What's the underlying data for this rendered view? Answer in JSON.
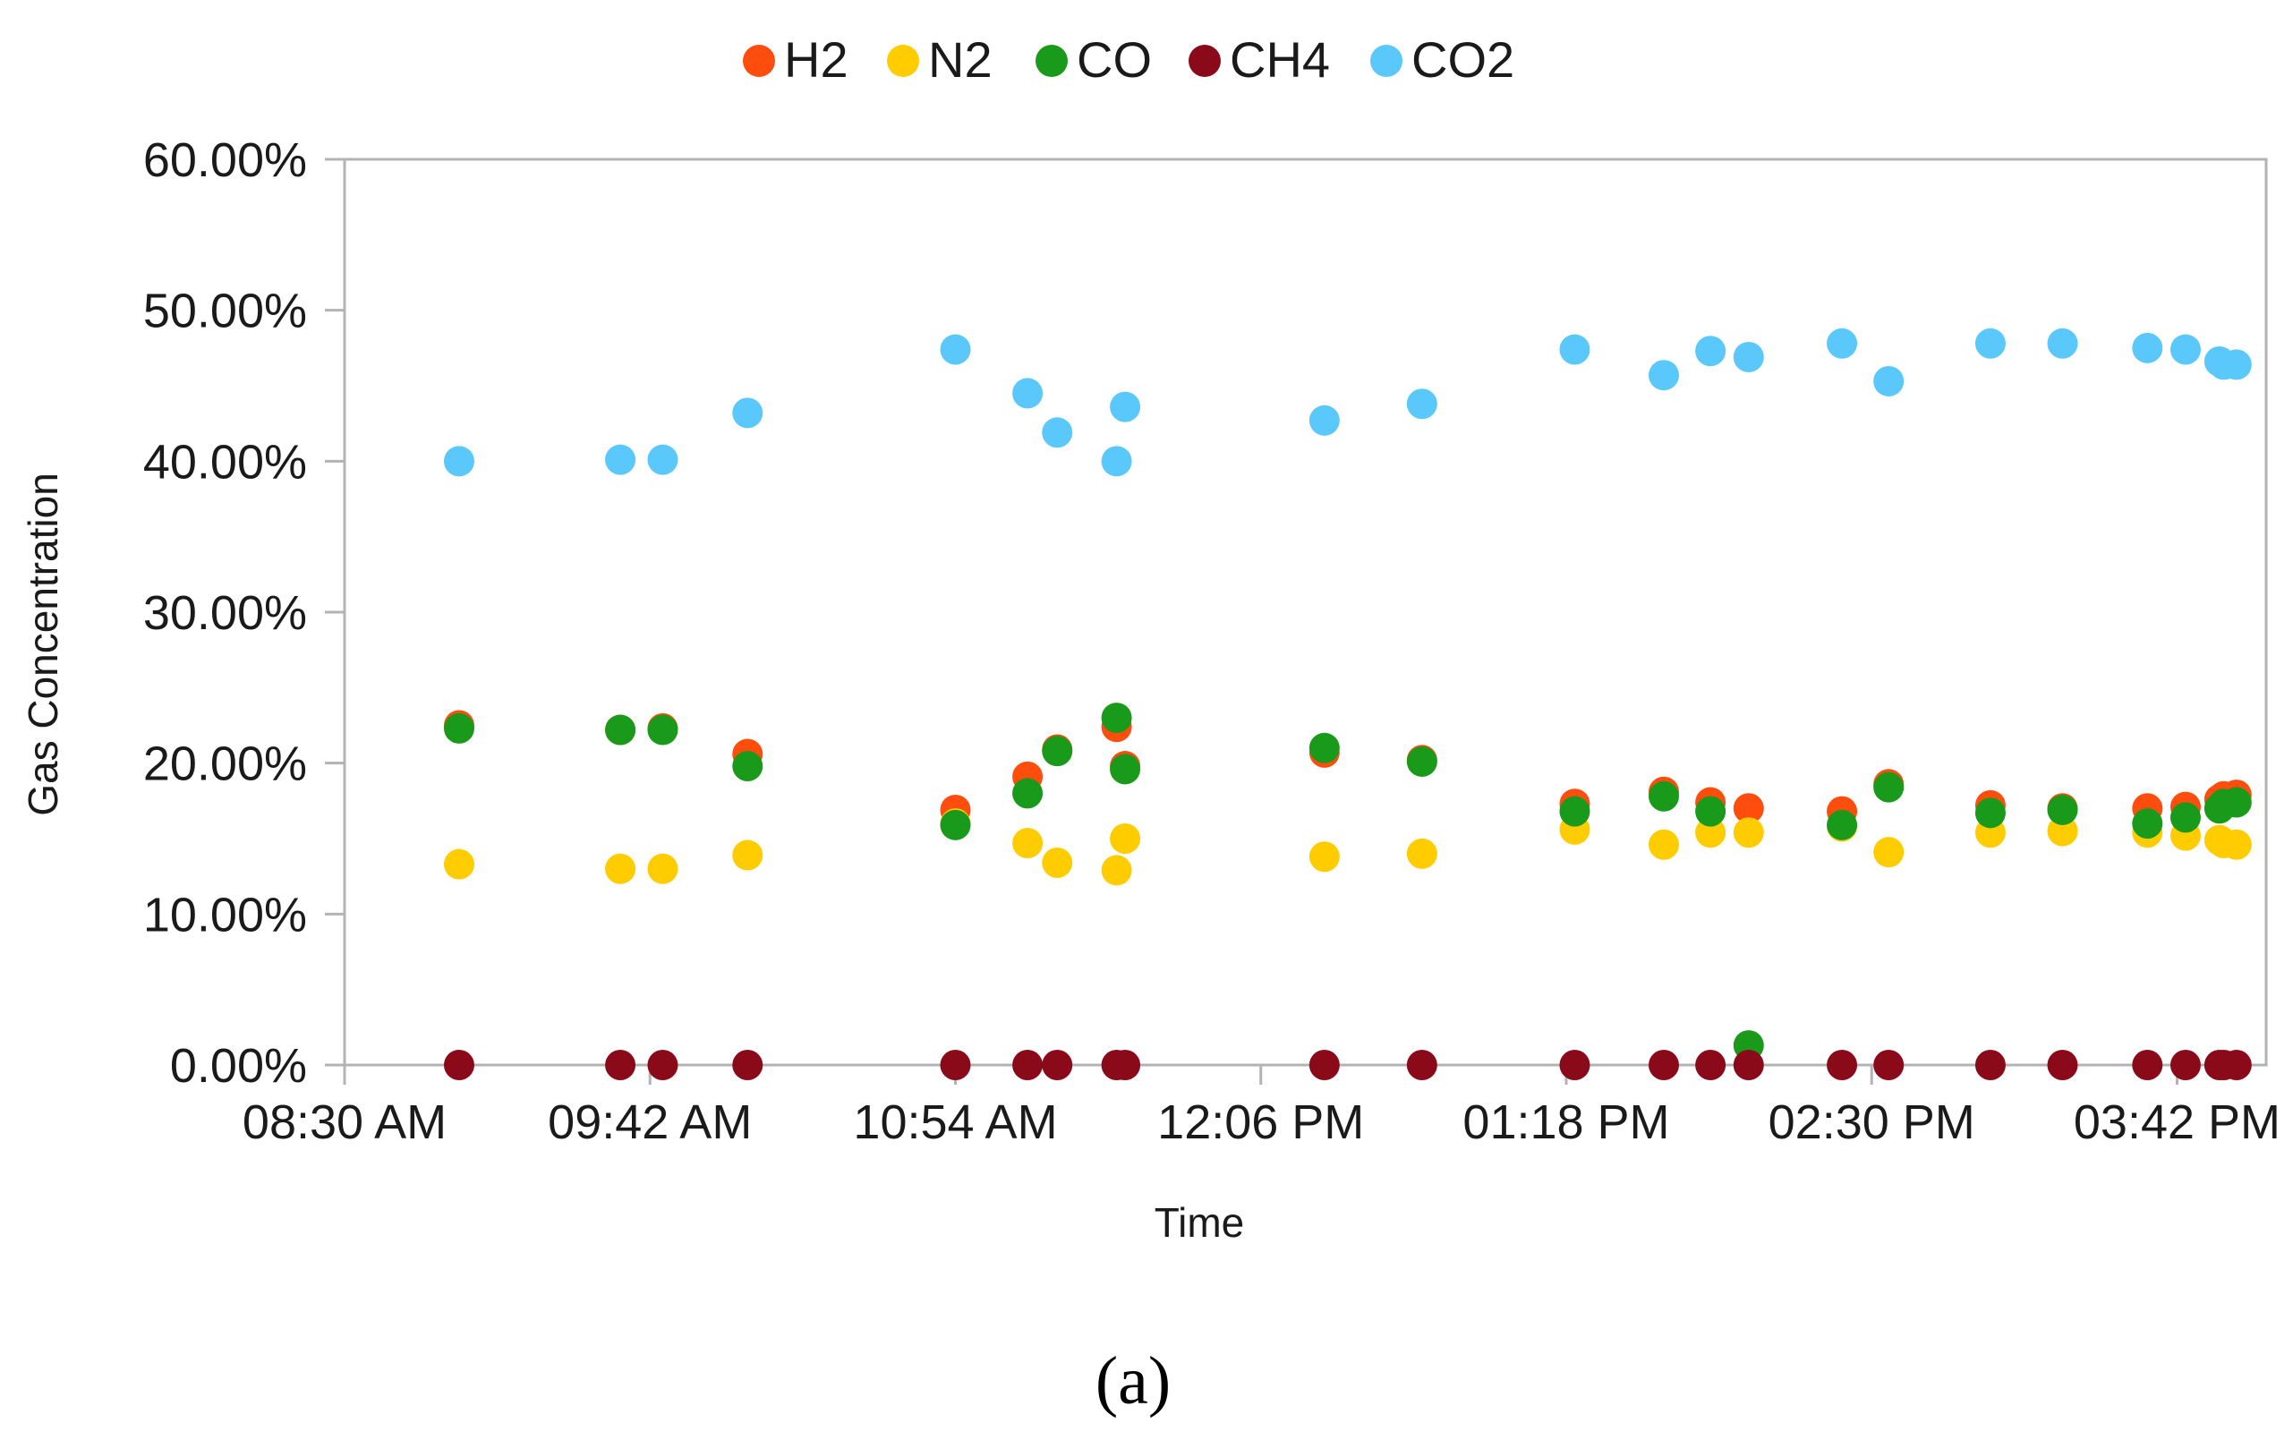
{
  "chart_data": {
    "type": "scatter",
    "caption": "(a)",
    "xlabel": "Time",
    "ylabel": "Gas Concentration",
    "x_tick_labels": [
      "08:30 AM",
      "09:42 AM",
      "10:54 AM",
      "12:06 PM",
      "01:18 PM",
      "02:30 PM",
      "03:42 PM"
    ],
    "x_tick_minutes": [
      510,
      582,
      654,
      726,
      798,
      870,
      942
    ],
    "xlim_minutes": [
      510,
      963
    ],
    "y_tick_labels": [
      "0.00%",
      "10.00%",
      "20.00%",
      "30.00%",
      "40.00%",
      "50.00%",
      "60.00%"
    ],
    "y_tick_values": [
      0,
      10,
      20,
      30,
      40,
      50,
      60
    ],
    "ylim": [
      0,
      60
    ],
    "legend_position": "top-center",
    "x_minutes": [
      537,
      575,
      585,
      605,
      654,
      671,
      678,
      692,
      694,
      741,
      764,
      800,
      821,
      832,
      841,
      863,
      874,
      898,
      915,
      935,
      944,
      952,
      953,
      956
    ],
    "series": [
      {
        "name": "H2",
        "color": "#ff4d0d",
        "values": [
          22.5,
          22.2,
          22.3,
          20.6,
          16.9,
          19.1,
          20.9,
          22.4,
          19.8,
          20.7,
          20.2,
          17.3,
          18.1,
          17.4,
          17.0,
          16.8,
          18.6,
          17.2,
          17.0,
          17.0,
          17.1,
          17.6,
          17.8,
          17.9
        ]
      },
      {
        "name": "N2",
        "color": "#ffcc00",
        "values": [
          13.3,
          13.0,
          13.0,
          13.9,
          16.0,
          14.7,
          13.4,
          12.9,
          15.0,
          13.8,
          14.0,
          15.6,
          14.6,
          15.4,
          15.4,
          15.8,
          14.1,
          15.4,
          15.5,
          15.4,
          15.2,
          14.9,
          14.7,
          14.6
        ]
      },
      {
        "name": "CO",
        "color": "#1a9a1a",
        "values": [
          22.3,
          22.2,
          22.2,
          19.8,
          15.9,
          18.0,
          20.8,
          23.0,
          19.6,
          21.0,
          20.1,
          16.8,
          17.8,
          16.8,
          1.3,
          15.9,
          18.4,
          16.7,
          16.9,
          16.0,
          16.4,
          17.0,
          17.3,
          17.4
        ]
      },
      {
        "name": "CH4",
        "color": "#8b0a1a",
        "values": [
          0.0,
          0.0,
          0.0,
          0.0,
          0.0,
          0.0,
          0.0,
          0.0,
          0.0,
          0.0,
          0.0,
          0.0,
          0.0,
          0.0,
          0.0,
          0.0,
          0.0,
          0.0,
          0.0,
          0.0,
          0.0,
          0.0,
          0.0,
          0.0
        ]
      },
      {
        "name": "CO2",
        "color": "#5ac8fa",
        "values": [
          40.0,
          40.1,
          40.1,
          43.2,
          47.4,
          44.5,
          41.9,
          40.0,
          43.6,
          42.7,
          43.8,
          47.4,
          45.7,
          47.3,
          46.9,
          47.8,
          45.3,
          47.8,
          47.8,
          47.5,
          47.4,
          46.6,
          46.4,
          46.4
        ]
      }
    ]
  }
}
